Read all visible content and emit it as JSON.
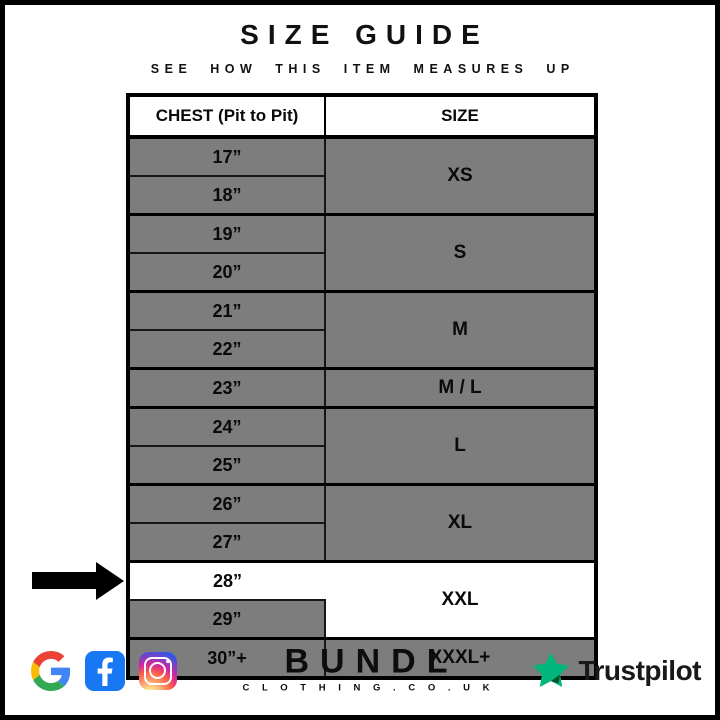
{
  "header": {
    "title": "SIZE GUIDE",
    "subtitle": "SEE HOW THIS ITEM MEASURES UP"
  },
  "table": {
    "headers": {
      "chest": "CHEST (Pit to Pit)",
      "size": "SIZE"
    },
    "groups": [
      {
        "size": "XS",
        "measurements": [
          "17”",
          "18”"
        ]
      },
      {
        "size": "S",
        "measurements": [
          "19”",
          "20”"
        ]
      },
      {
        "size": "M",
        "measurements": [
          "21”",
          "22”"
        ]
      },
      {
        "size": "M / L",
        "measurements": [
          "23”"
        ]
      },
      {
        "size": "L",
        "measurements": [
          "24”",
          "25”"
        ]
      },
      {
        "size": "XL",
        "measurements": [
          "26”",
          "27”"
        ]
      },
      {
        "size": "XXL",
        "measurements": [
          "28”",
          "29”"
        ],
        "highlighted": true,
        "highlighted_measurement": "28”"
      },
      {
        "size": "XXXL+",
        "measurements": [
          "30”+"
        ]
      }
    ]
  },
  "annotation": {
    "arrow_points_at": "28” / XXL row"
  },
  "footer": {
    "icons": [
      {
        "name": "google-icon"
      },
      {
        "name": "facebook-icon"
      },
      {
        "name": "instagram-icon"
      }
    ],
    "brand": {
      "name": "BUNDL",
      "domain": "C L O T H I N G . C O . U K"
    },
    "trustpilot": {
      "label": "Trustpilot",
      "icon": "trustpilot-star-icon"
    }
  },
  "colors": {
    "row_gray": "#7d7d7d",
    "highlight_white": "#ffffff",
    "border_black": "#000000",
    "trustpilot_green": "#00B67A",
    "trustpilot_dark_green": "#005128",
    "facebook_blue": "#1877F2"
  }
}
